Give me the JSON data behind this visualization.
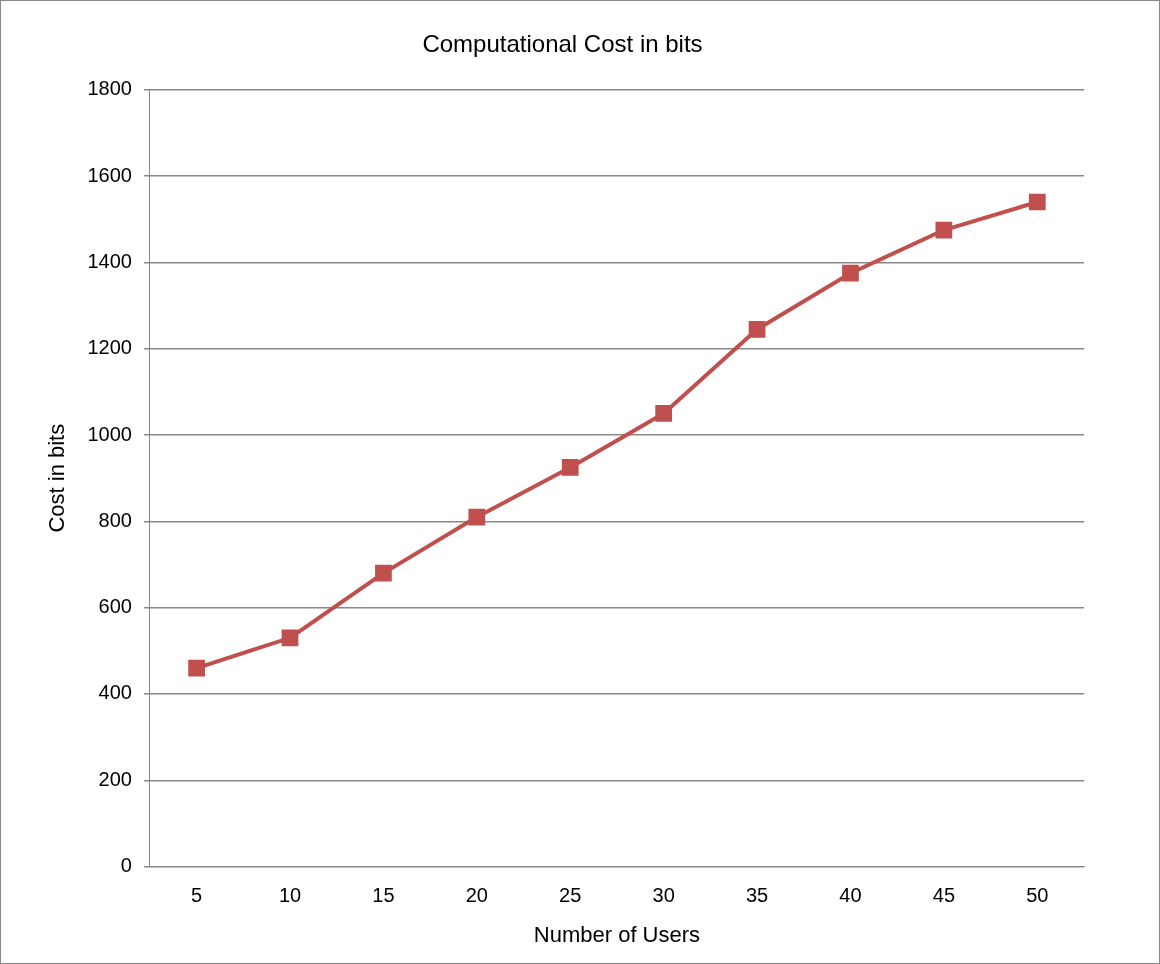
{
  "chart_data": {
    "type": "line",
    "title": "Computational Cost in bits",
    "xlabel": "Number of Users",
    "ylabel": "Cost in bits",
    "categories": [
      "5",
      "10",
      "15",
      "20",
      "25",
      "30",
      "35",
      "40",
      "45",
      "50"
    ],
    "series": [
      {
        "color": "#c0504d",
        "values": [
          460,
          530,
          680,
          810,
          925,
          1050,
          1245,
          1375,
          1475,
          1540
        ]
      }
    ],
    "ylim": [
      0,
      1800
    ],
    "yticks": [
      0,
      200,
      400,
      600,
      800,
      1000,
      1200,
      1400,
      1600,
      1800
    ],
    "grid": "y",
    "legend": false,
    "marker": "square",
    "line_style": "solid"
  }
}
